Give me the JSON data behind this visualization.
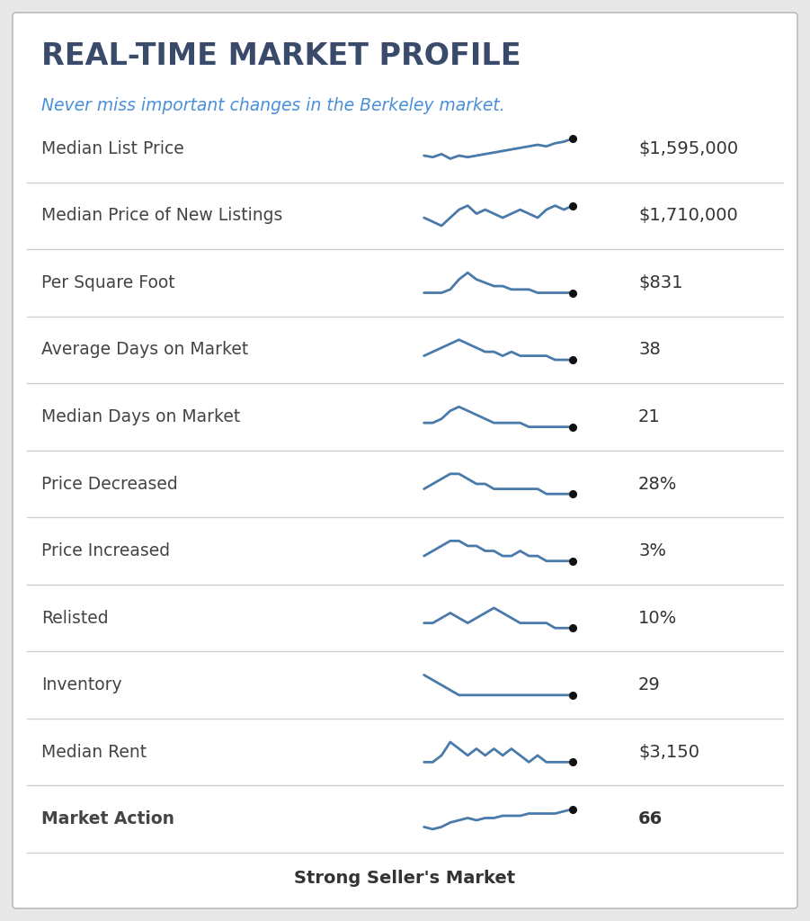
{
  "title": "Real-Time Market Profile",
  "subtitle": "Never miss important changes in the Berkeley market.",
  "background_color": "#e8e8e8",
  "card_color": "#ffffff",
  "title_color": "#3a4a6b",
  "subtitle_color": "#4a90d9",
  "row_label_color": "#444444",
  "value_color": "#333333",
  "sparkline_color": "#4a7aaa",
  "dot_color": "#111111",
  "divider_color": "#cccccc",
  "rows": [
    {
      "label": "Median List Price",
      "value": "$1,595,000",
      "bold": false,
      "sparkline": [
        10,
        9,
        11,
        8,
        10,
        9,
        10,
        11,
        12,
        13,
        14,
        15,
        16,
        17,
        16,
        18,
        19,
        21
      ]
    },
    {
      "label": "Median Price of New Listings",
      "value": "$1,710,000",
      "bold": false,
      "sparkline": [
        10,
        9,
        8,
        10,
        12,
        13,
        11,
        12,
        11,
        10,
        11,
        12,
        11,
        10,
        12,
        13,
        12,
        13
      ]
    },
    {
      "label": "Per Square Foot",
      "value": "$831",
      "bold": false,
      "sparkline": [
        10,
        10,
        10,
        11,
        14,
        16,
        14,
        13,
        12,
        12,
        11,
        11,
        11,
        10,
        10,
        10,
        10,
        10
      ]
    },
    {
      "label": "Average Days on Market",
      "value": "38",
      "bold": false,
      "sparkline": [
        10,
        11,
        12,
        13,
        14,
        13,
        12,
        11,
        11,
        10,
        11,
        10,
        10,
        10,
        10,
        9,
        9,
        9
      ]
    },
    {
      "label": "Median Days on Market",
      "value": "21",
      "bold": false,
      "sparkline": [
        10,
        10,
        11,
        13,
        14,
        13,
        12,
        11,
        10,
        10,
        10,
        10,
        9,
        9,
        9,
        9,
        9,
        9
      ]
    },
    {
      "label": "Price Decreased",
      "value": "28%",
      "bold": false,
      "sparkline": [
        10,
        11,
        12,
        13,
        13,
        12,
        11,
        11,
        10,
        10,
        10,
        10,
        10,
        10,
        9,
        9,
        9,
        9
      ]
    },
    {
      "label": "Price Increased",
      "value": "3%",
      "bold": false,
      "sparkline": [
        10,
        11,
        12,
        13,
        13,
        12,
        12,
        11,
        11,
        10,
        10,
        11,
        10,
        10,
        9,
        9,
        9,
        9
      ]
    },
    {
      "label": "Relisted",
      "value": "10%",
      "bold": false,
      "sparkline": [
        10,
        10,
        11,
        12,
        11,
        10,
        11,
        12,
        13,
        12,
        11,
        10,
        10,
        10,
        10,
        9,
        9,
        9
      ]
    },
    {
      "label": "Inventory",
      "value": "29",
      "bold": false,
      "sparkline": [
        14,
        13,
        12,
        11,
        10,
        10,
        10,
        10,
        10,
        10,
        10,
        10,
        10,
        10,
        10,
        10,
        10,
        10
      ]
    },
    {
      "label": "Median Rent",
      "value": "$3,150",
      "bold": false,
      "sparkline": [
        10,
        10,
        11,
        13,
        12,
        11,
        12,
        11,
        12,
        11,
        12,
        11,
        10,
        11,
        10,
        10,
        10,
        10
      ]
    },
    {
      "label": "Market Action",
      "value": "66",
      "bold": true,
      "sparkline": [
        7,
        6,
        7,
        9,
        10,
        11,
        10,
        11,
        11,
        12,
        12,
        12,
        13,
        13,
        13,
        13,
        14,
        15
      ]
    }
  ],
  "footer": "Strong Seller's Market"
}
